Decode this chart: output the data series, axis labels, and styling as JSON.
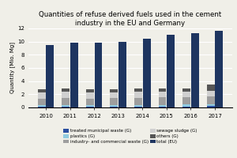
{
  "title": "Quantities of refuse derived fuels used in the cement\nindustry in the EU and Germany",
  "ylabel": "Quantity [Mio. Mg]",
  "years": [
    2010,
    2011,
    2012,
    2013,
    2014,
    2015,
    2016,
    2017
  ],
  "eu_total": [
    9.5,
    9.85,
    9.8,
    10.0,
    10.4,
    11.1,
    11.25,
    11.6
  ],
  "germany": {
    "treated_municipal_waste": [
      0.15,
      0.15,
      0.12,
      0.12,
      0.18,
      0.18,
      0.18,
      0.22
    ],
    "plastics": [
      0.22,
      0.22,
      0.2,
      0.2,
      0.22,
      0.22,
      0.28,
      0.32
    ],
    "industry_commercial_waste": [
      1.0,
      1.08,
      1.05,
      1.08,
      1.08,
      1.12,
      1.08,
      1.12
    ],
    "sewage_sludge": [
      0.88,
      0.92,
      0.88,
      0.88,
      0.88,
      0.88,
      0.88,
      0.88
    ],
    "others": [
      0.48,
      0.52,
      0.52,
      0.52,
      0.52,
      0.52,
      0.52,
      0.9
    ]
  },
  "colors": {
    "treated_municipal_waste": "#2b4fa0",
    "plastics": "#90cbe0",
    "industry_commercial_waste": "#9e9e9e",
    "sewage_sludge": "#d0d0d0",
    "others": "#555555",
    "eu_total": "#1e3560"
  },
  "ylim": [
    0,
    12
  ],
  "yticks": [
    0,
    2,
    4,
    6,
    8,
    10,
    12
  ],
  "bar_width": 0.32,
  "background_color": "#f0efe8"
}
